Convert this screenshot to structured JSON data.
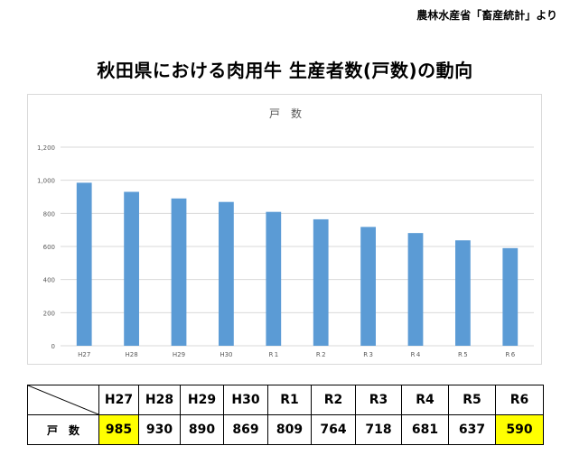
{
  "source_note": "農林水産省「畜産統計」より",
  "page_title": "秋田県における肉用牛 生産者数(戸数)の動向",
  "chart_data": {
    "type": "bar",
    "title": "戸　数",
    "categories": [
      "H27",
      "H28",
      "H29",
      "H30",
      "R 1",
      "R 2",
      "R 3",
      "R 4",
      "R 5",
      "R 6"
    ],
    "values": [
      985,
      930,
      890,
      869,
      809,
      764,
      718,
      681,
      637,
      590
    ],
    "ylim": [
      0,
      1200
    ],
    "yticks": [
      0,
      200,
      400,
      600,
      800,
      1000,
      1200
    ],
    "ytick_labels": [
      "0",
      "200",
      "400",
      "600",
      "800",
      "1,000",
      "1,200"
    ],
    "grid": true,
    "bar_color": "#5b9bd5",
    "xlabel": "",
    "ylabel": ""
  },
  "table": {
    "headers": [
      "H27",
      "H28",
      "H29",
      "H30",
      "R1",
      "R2",
      "R3",
      "R4",
      "R5",
      "R6"
    ],
    "row_label": "戸　数",
    "values": [
      "985",
      "930",
      "890",
      "869",
      "809",
      "764",
      "718",
      "681",
      "637",
      "590"
    ],
    "highlight_color": "#ffff00"
  }
}
